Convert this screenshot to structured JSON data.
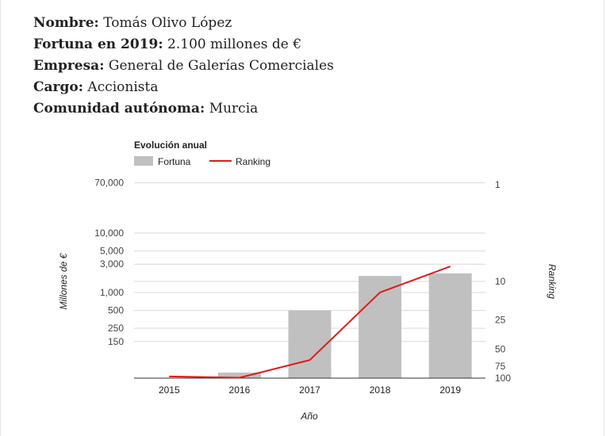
{
  "profile": [
    {
      "label": "Nombre:",
      "value": "Tomás Olivo López"
    },
    {
      "label": "Fortuna en 2019:",
      "value": "2.100 millones de €"
    },
    {
      "label": "Empresa:",
      "value": "General de Galerías Comerciales"
    },
    {
      "label": "Cargo:",
      "value": "Accionista"
    },
    {
      "label": "Comunidad autónoma:",
      "value": "Murcia"
    }
  ],
  "chart_data": {
    "type": "bar",
    "title": "Evolución anual",
    "xlabel": "Año",
    "ylabel": "Millones de €",
    "y2label": "Ranking",
    "categories": [
      "2015",
      "2016",
      "2017",
      "2018",
      "2019"
    ],
    "series": [
      {
        "name": "Fortuna",
        "type": "bar",
        "axis": "left",
        "color": "#c0c0c0",
        "values": [
          30,
          45,
          500,
          1900,
          2100
        ]
      },
      {
        "name": "Ranking",
        "type": "line",
        "axis": "right",
        "color": "#e01b1b",
        "values": [
          96,
          99,
          65,
          13,
          7
        ]
      }
    ],
    "y_ticks": [
      "70,000",
      "10,000",
      "5,000",
      "3,000",
      "1,000",
      "500",
      "250",
      "150"
    ],
    "y2_ticks": [
      "1",
      "10",
      "25",
      "50",
      "75",
      "100"
    ],
    "y_scale": "log",
    "y2_scale": "log, reversed",
    "legend": "top-left",
    "grid": true
  }
}
